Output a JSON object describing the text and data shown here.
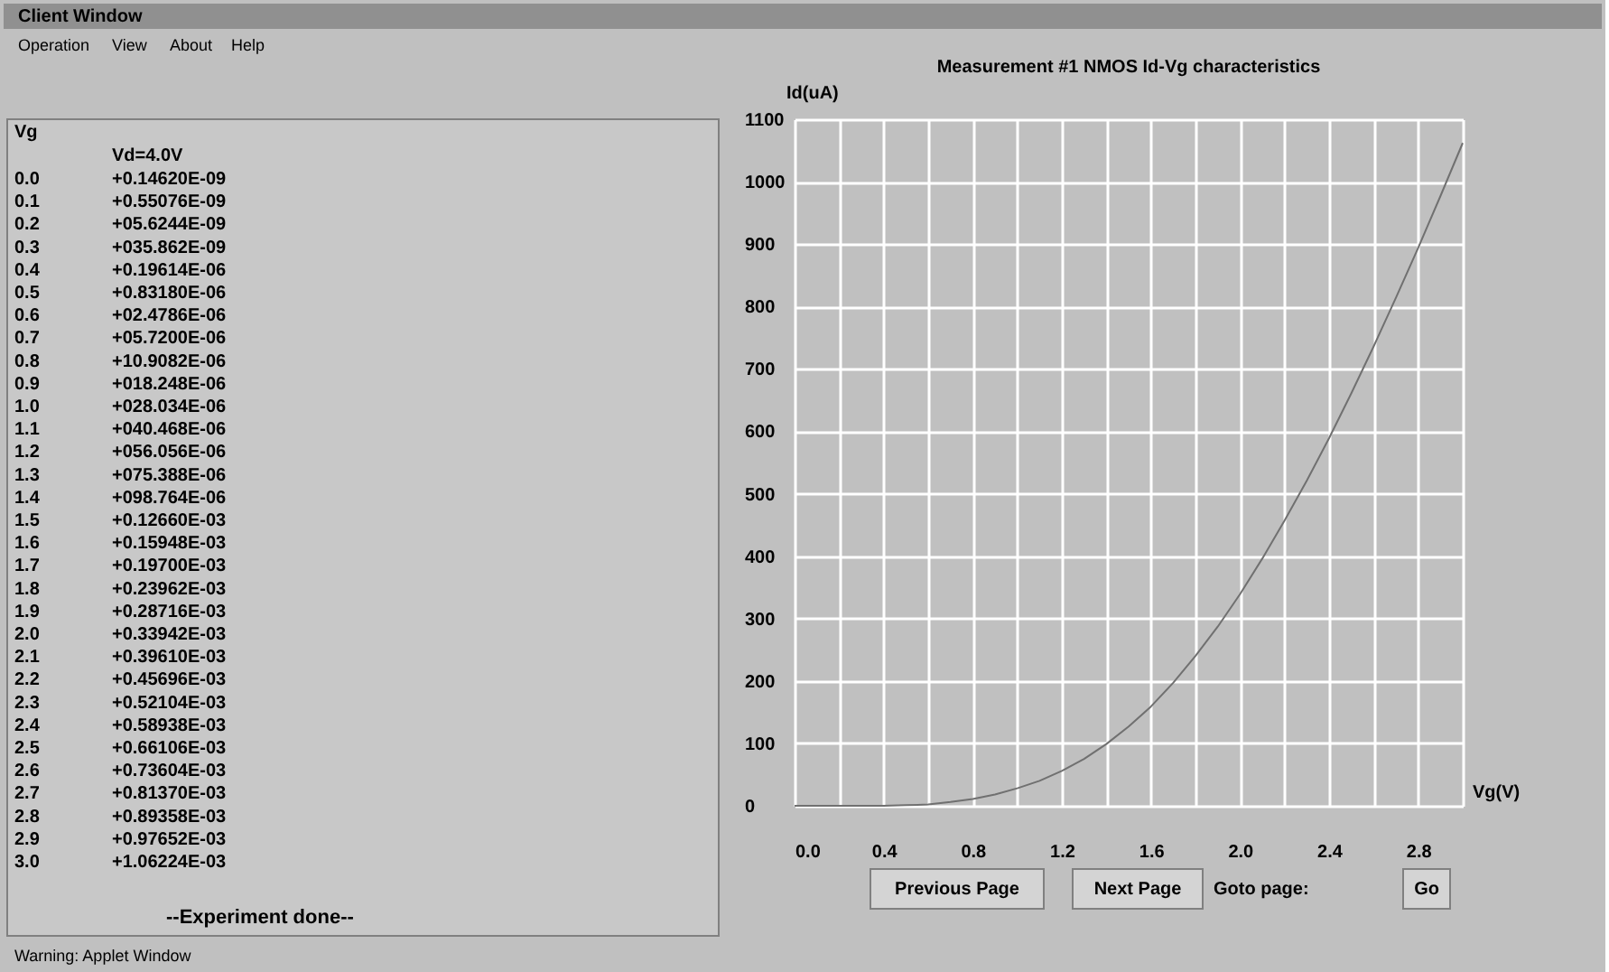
{
  "chart_data": {
    "type": "line",
    "title": "Measurement #1 NMOS Id-Vg characteristics",
    "xlabel": "Vg(V)",
    "ylabel": "Id(uA)",
    "x": [
      0.0,
      0.1,
      0.2,
      0.3,
      0.4,
      0.5,
      0.6,
      0.7,
      0.8,
      0.9,
      1.0,
      1.1,
      1.2,
      1.3,
      1.4,
      1.5,
      1.6,
      1.7,
      1.8,
      1.9,
      2.0,
      2.1,
      2.2,
      2.3,
      2.4,
      2.5,
      2.6,
      2.7,
      2.8,
      2.9,
      3.0
    ],
    "series": [
      {
        "color": "#707070",
        "values": [
          0,
          0,
          0,
          0,
          0,
          1,
          2,
          6,
          11,
          18,
          28,
          40,
          56,
          75,
          99,
          127,
          159,
          197,
          240,
          287,
          339,
          396,
          457,
          521,
          589,
          661,
          736,
          814,
          894,
          977,
          1062
        ]
      }
    ],
    "xlim": [
      0,
      3.0
    ],
    "ylim": [
      0,
      1100
    ],
    "xticks": [
      {
        "value": 0,
        "label": "0.0"
      },
      {
        "value": 0.2,
        "label": null
      },
      0.4,
      {
        "value": 0.6,
        "label": null
      },
      0.8,
      {
        "value": 1.0,
        "label": null
      },
      1.2,
      {
        "value": 1.4,
        "label": null
      },
      1.6,
      {
        "value": 1.8,
        "label": null
      },
      {
        "value": 2.0,
        "label": "2.0"
      },
      {
        "value": 2.2,
        "label": null
      },
      2.4,
      {
        "value": 2.6,
        "label": null
      },
      2.8,
      {
        "value": 3.0,
        "label": null
      }
    ],
    "yticks": [
      0,
      100,
      200,
      300,
      400,
      500,
      600,
      700,
      800,
      900,
      1000,
      1100
    ],
    "grid": true,
    "marker": "none",
    "line_style": "solid",
    "legend": false,
    "annotations": [
      "Client Window",
      "Operation",
      "View",
      "About",
      "Help",
      "Vg",
      "Vd=4.0V",
      "0.0",
      "+0.14620E-09",
      "0.1",
      "+0.55076E-09",
      "0.2",
      "+05.6244E-09",
      "0.3",
      "+035.862E-09",
      "0.4",
      "+0.19614E-06",
      "0.5",
      "+0.83180E-06",
      "0.6",
      "+02.4786E-06",
      "0.7",
      "+05.7200E-06",
      "0.8",
      "+10.9082E-06",
      "0.9",
      "+018.248E-06",
      "1.0",
      "+028.034E-06",
      "1.1",
      "+040.468E-06",
      "1.2",
      "+056.056E-06",
      "1.3",
      "+075.388E-06",
      "1.4",
      "+098.764E-06",
      "1.5",
      "+0.12660E-03",
      "1.6",
      "+0.15948E-03",
      "1.7",
      "+0.19700E-03",
      "1.8",
      "+0.23962E-03",
      "1.9",
      "+0.28716E-03",
      "2.0",
      "+0.33942E-03",
      "2.1",
      "+0.39610E-03",
      "2.2",
      "+0.45696E-03",
      "2.3",
      "+0.52104E-03",
      "2.4",
      "+0.58938E-03",
      "2.5",
      "+0.66106E-03",
      "2.6",
      "+0.73604E-03",
      "2.7",
      "+0.81370E-03",
      "2.8",
      "+0.89358E-03",
      "2.9",
      "+0.97652E-03",
      "3.0",
      "+1.06224E-03",
      "--Experiment done--",
      "Previous Page",
      "Next Page",
      "Goto page:",
      "Go",
      "Warning: Applet Window"
    ]
  }
}
